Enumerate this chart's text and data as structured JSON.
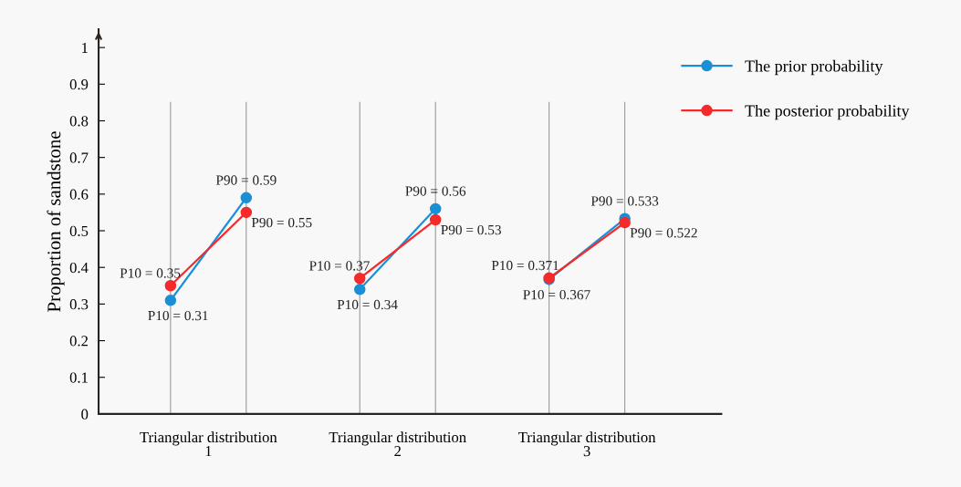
{
  "chart_data": {
    "type": "line",
    "ylabel": "Proportion of sandstone",
    "categories": [
      null,
      "Triangular distribution\n1",
      null,
      null,
      null,
      null,
      "Triangular distribution\n2",
      null,
      null,
      null,
      null,
      "Triangular distribution\n3",
      null
    ],
    "ylim": [
      0,
      1.05
    ],
    "yticks": [
      0,
      0.1,
      0.2,
      0.3,
      0.4,
      0.5,
      0.6,
      0.7,
      0.8,
      0.9,
      1
    ],
    "series": [
      {
        "name": "The prior probability",
        "color": "#1a8fd6",
        "values": [
          0.31,
          null,
          0.59,
          null,
          null,
          null,
          null,
          null,
          null,
          null,
          null,
          null,
          null
        ],
        "value_labels": [
          "P10 = 0.31",
          null,
          "P90 = 0.59",
          null,
          null,
          null,
          null,
          null,
          null,
          null,
          null,
          null,
          null
        ]
      },
      {
        "color": "#1a8fd6",
        "values": [
          null,
          null,
          null,
          null,
          null,
          0.34,
          null,
          0.56,
          null,
          null,
          null,
          null,
          null
        ],
        "value_labels": [
          null,
          null,
          null,
          null,
          null,
          "P10 = 0.34",
          null,
          "P90 = 0.56",
          null,
          null,
          null,
          null,
          null
        ]
      },
      {
        "color": "#1a8fd6",
        "values": [
          null,
          null,
          null,
          null,
          null,
          null,
          null,
          null,
          null,
          null,
          0.367,
          null,
          0.533
        ],
        "value_labels": [
          null,
          null,
          null,
          null,
          null,
          null,
          null,
          null,
          null,
          null,
          "P10 = 0.367",
          null,
          "P90 = 0.533"
        ]
      },
      {
        "name": "The posterior probability",
        "color": "#f52a2a",
        "values": [
          0.35,
          null,
          0.55,
          null,
          null,
          null,
          null,
          null,
          null,
          null,
          null,
          null,
          null
        ],
        "value_labels": [
          "P10 = 0.35",
          null,
          "P90 = 0.55",
          null,
          null,
          null,
          null,
          null,
          null,
          null,
          null,
          null,
          null
        ]
      },
      {
        "color": "#f52a2a",
        "values": [
          null,
          null,
          null,
          null,
          null,
          0.37,
          null,
          0.53,
          null,
          null,
          null,
          null,
          null
        ],
        "value_labels": [
          null,
          null,
          null,
          null,
          null,
          "P10 = 0.37",
          null,
          "P90 = 0.53",
          null,
          null,
          null,
          null,
          null
        ]
      },
      {
        "color": "#f52a2a",
        "values": [
          null,
          null,
          null,
          null,
          null,
          null,
          null,
          null,
          null,
          null,
          0.371,
          null,
          0.522
        ],
        "value_labels": [
          null,
          null,
          null,
          null,
          null,
          null,
          null,
          null,
          null,
          null,
          "P10 = 0.371",
          null,
          "P90 = 0.522"
        ]
      }
    ],
    "marker": "circle",
    "line_style": "solid",
    "legend": "top right",
    "grid": "x"
  }
}
